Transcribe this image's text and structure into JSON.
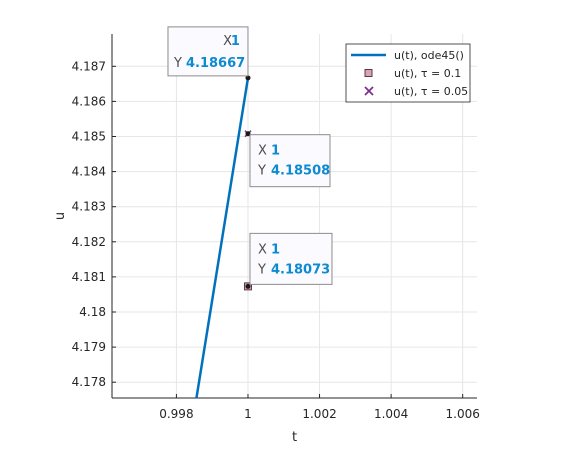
{
  "chart_data": {
    "type": "line",
    "xlabel": "t",
    "ylabel": "u",
    "xlim": [
      0.9962,
      1.0064
    ],
    "ylim": [
      4.17755,
      4.18792
    ],
    "x_ticks": [
      "0.998",
      "1",
      "1.002",
      "1.004",
      "1.006"
    ],
    "x_tick_values": [
      0.998,
      1.0,
      1.002,
      1.004,
      1.006
    ],
    "y_ticks": [
      "4.178",
      "4.179",
      "4.18",
      "4.181",
      "4.182",
      "4.183",
      "4.184",
      "4.185",
      "4.186",
      "4.187"
    ],
    "y_tick_values": [
      4.178,
      4.179,
      4.18,
      4.181,
      4.182,
      4.183,
      4.184,
      4.185,
      4.186,
      4.187
    ],
    "grid": true,
    "legend_position": "top-right",
    "series": [
      {
        "name": "u(t), ode45()",
        "marker": "line",
        "color": "#0072bd",
        "x": [
          0.99856,
          1.0
        ],
        "y": [
          4.17755,
          4.18667
        ]
      },
      {
        "name": "u(t), τ = 0.1",
        "marker": "square",
        "color": "#d9a3b3",
        "x": [
          1.0
        ],
        "y": [
          4.18073
        ]
      },
      {
        "name": "u(t), τ = 0.05",
        "marker": "x",
        "color": "#7e2f8e",
        "x": [
          1.0
        ],
        "y": [
          4.18508
        ]
      }
    ],
    "datatips": [
      {
        "x_label": "X",
        "x_value": "1",
        "y_label": "Y",
        "y_value": "4.18667",
        "x": 1.0,
        "y": 4.18667
      },
      {
        "x_label": "X",
        "x_value": "1",
        "y_label": "Y",
        "y_value": "4.18508",
        "x": 1.0,
        "y": 4.18508
      },
      {
        "x_label": "X",
        "x_value": "1",
        "y_label": "Y",
        "y_value": "4.18073",
        "x": 1.0,
        "y": 4.18073
      }
    ]
  }
}
